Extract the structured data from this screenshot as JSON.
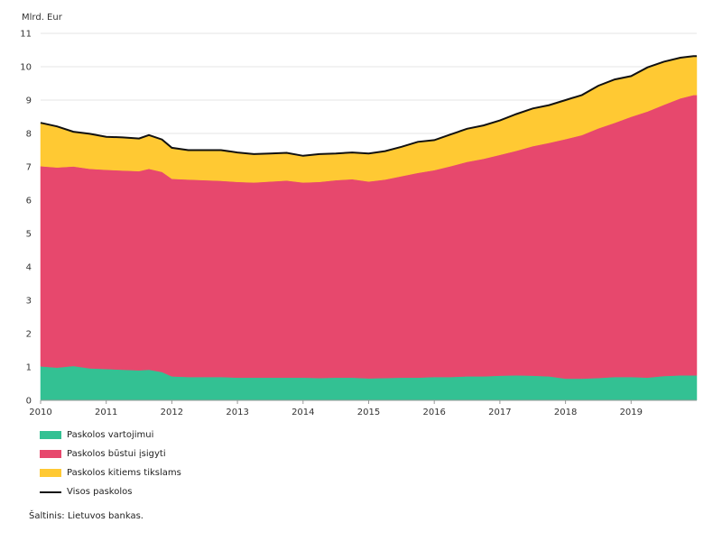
{
  "chart_data": {
    "type": "area",
    "stacked": true,
    "ylabel": "Mlrd. Eur",
    "ylim": [
      0,
      11
    ],
    "yticks": [
      0,
      1,
      2,
      3,
      4,
      5,
      6,
      7,
      8,
      9,
      10,
      11
    ],
    "xlim": [
      2010,
      2020
    ],
    "xticks": [
      "2010",
      "2011",
      "2012",
      "2013",
      "2014",
      "2015",
      "2016",
      "2017",
      "2018",
      "2019"
    ],
    "grid": "horizontal",
    "legend_position": "bottom-left",
    "x": [
      2010.0,
      2010.25,
      2010.5,
      2010.75,
      2011.0,
      2011.25,
      2011.5,
      2011.65,
      2011.85,
      2012.0,
      2012.25,
      2012.5,
      2012.75,
      2013.0,
      2013.25,
      2013.5,
      2013.75,
      2014.0,
      2014.25,
      2014.5,
      2014.75,
      2015.0,
      2015.25,
      2015.5,
      2015.75,
      2016.0,
      2016.25,
      2016.5,
      2016.75,
      2017.0,
      2017.25,
      2017.5,
      2017.75,
      2018.0,
      2018.25,
      2018.5,
      2018.75,
      2019.0,
      2019.25,
      2019.5,
      2019.75,
      2019.95
    ],
    "series": [
      {
        "name": "Paskolos vartojimui",
        "color": "#33c193",
        "values": [
          1.02,
          0.98,
          1.03,
          0.96,
          0.94,
          0.92,
          0.9,
          0.92,
          0.85,
          0.72,
          0.7,
          0.7,
          0.7,
          0.68,
          0.68,
          0.68,
          0.68,
          0.68,
          0.67,
          0.68,
          0.68,
          0.66,
          0.67,
          0.68,
          0.68,
          0.7,
          0.7,
          0.72,
          0.72,
          0.74,
          0.75,
          0.74,
          0.72,
          0.65,
          0.65,
          0.67,
          0.7,
          0.7,
          0.68,
          0.73,
          0.75,
          0.75
        ]
      },
      {
        "name": "Paskolos būstui įsigyti",
        "color": "#e7486d",
        "values": [
          6.0,
          6.0,
          5.98,
          5.98,
          5.97,
          5.97,
          5.97,
          6.02,
          6.0,
          5.92,
          5.92,
          5.9,
          5.88,
          5.87,
          5.85,
          5.88,
          5.91,
          5.85,
          5.88,
          5.92,
          5.95,
          5.9,
          5.95,
          6.04,
          6.14,
          6.2,
          6.32,
          6.43,
          6.52,
          6.62,
          6.73,
          6.88,
          7.0,
          7.18,
          7.3,
          7.48,
          7.62,
          7.8,
          7.98,
          8.13,
          8.3,
          8.4
        ]
      },
      {
        "name": "Paskolos kitiems tikslams",
        "color": "#ffc933",
        "values": [
          1.3,
          1.23,
          1.04,
          1.05,
          0.99,
          0.99,
          0.98,
          1.01,
          0.97,
          0.93,
          0.88,
          0.9,
          0.92,
          0.88,
          0.85,
          0.84,
          0.83,
          0.8,
          0.83,
          0.8,
          0.8,
          0.84,
          0.85,
          0.88,
          0.93,
          0.9,
          0.95,
          0.99,
          1.0,
          1.03,
          1.1,
          1.13,
          1.13,
          1.17,
          1.2,
          1.28,
          1.3,
          1.22,
          1.32,
          1.29,
          1.22,
          1.17
        ]
      },
      {
        "name": "Visos paskolos",
        "color": "#111111",
        "type": "line",
        "values": [
          8.32,
          8.21,
          8.05,
          7.99,
          7.9,
          7.88,
          7.85,
          7.95,
          7.82,
          7.57,
          7.5,
          7.5,
          7.5,
          7.43,
          7.38,
          7.4,
          7.42,
          7.33,
          7.38,
          7.4,
          7.43,
          7.4,
          7.47,
          7.6,
          7.75,
          7.8,
          7.97,
          8.14,
          8.24,
          8.39,
          8.58,
          8.75,
          8.85,
          9.0,
          9.15,
          9.43,
          9.62,
          9.72,
          9.98,
          10.15,
          10.27,
          10.32
        ]
      }
    ],
    "source": "Šaltinis: Lietuvos bankas."
  }
}
